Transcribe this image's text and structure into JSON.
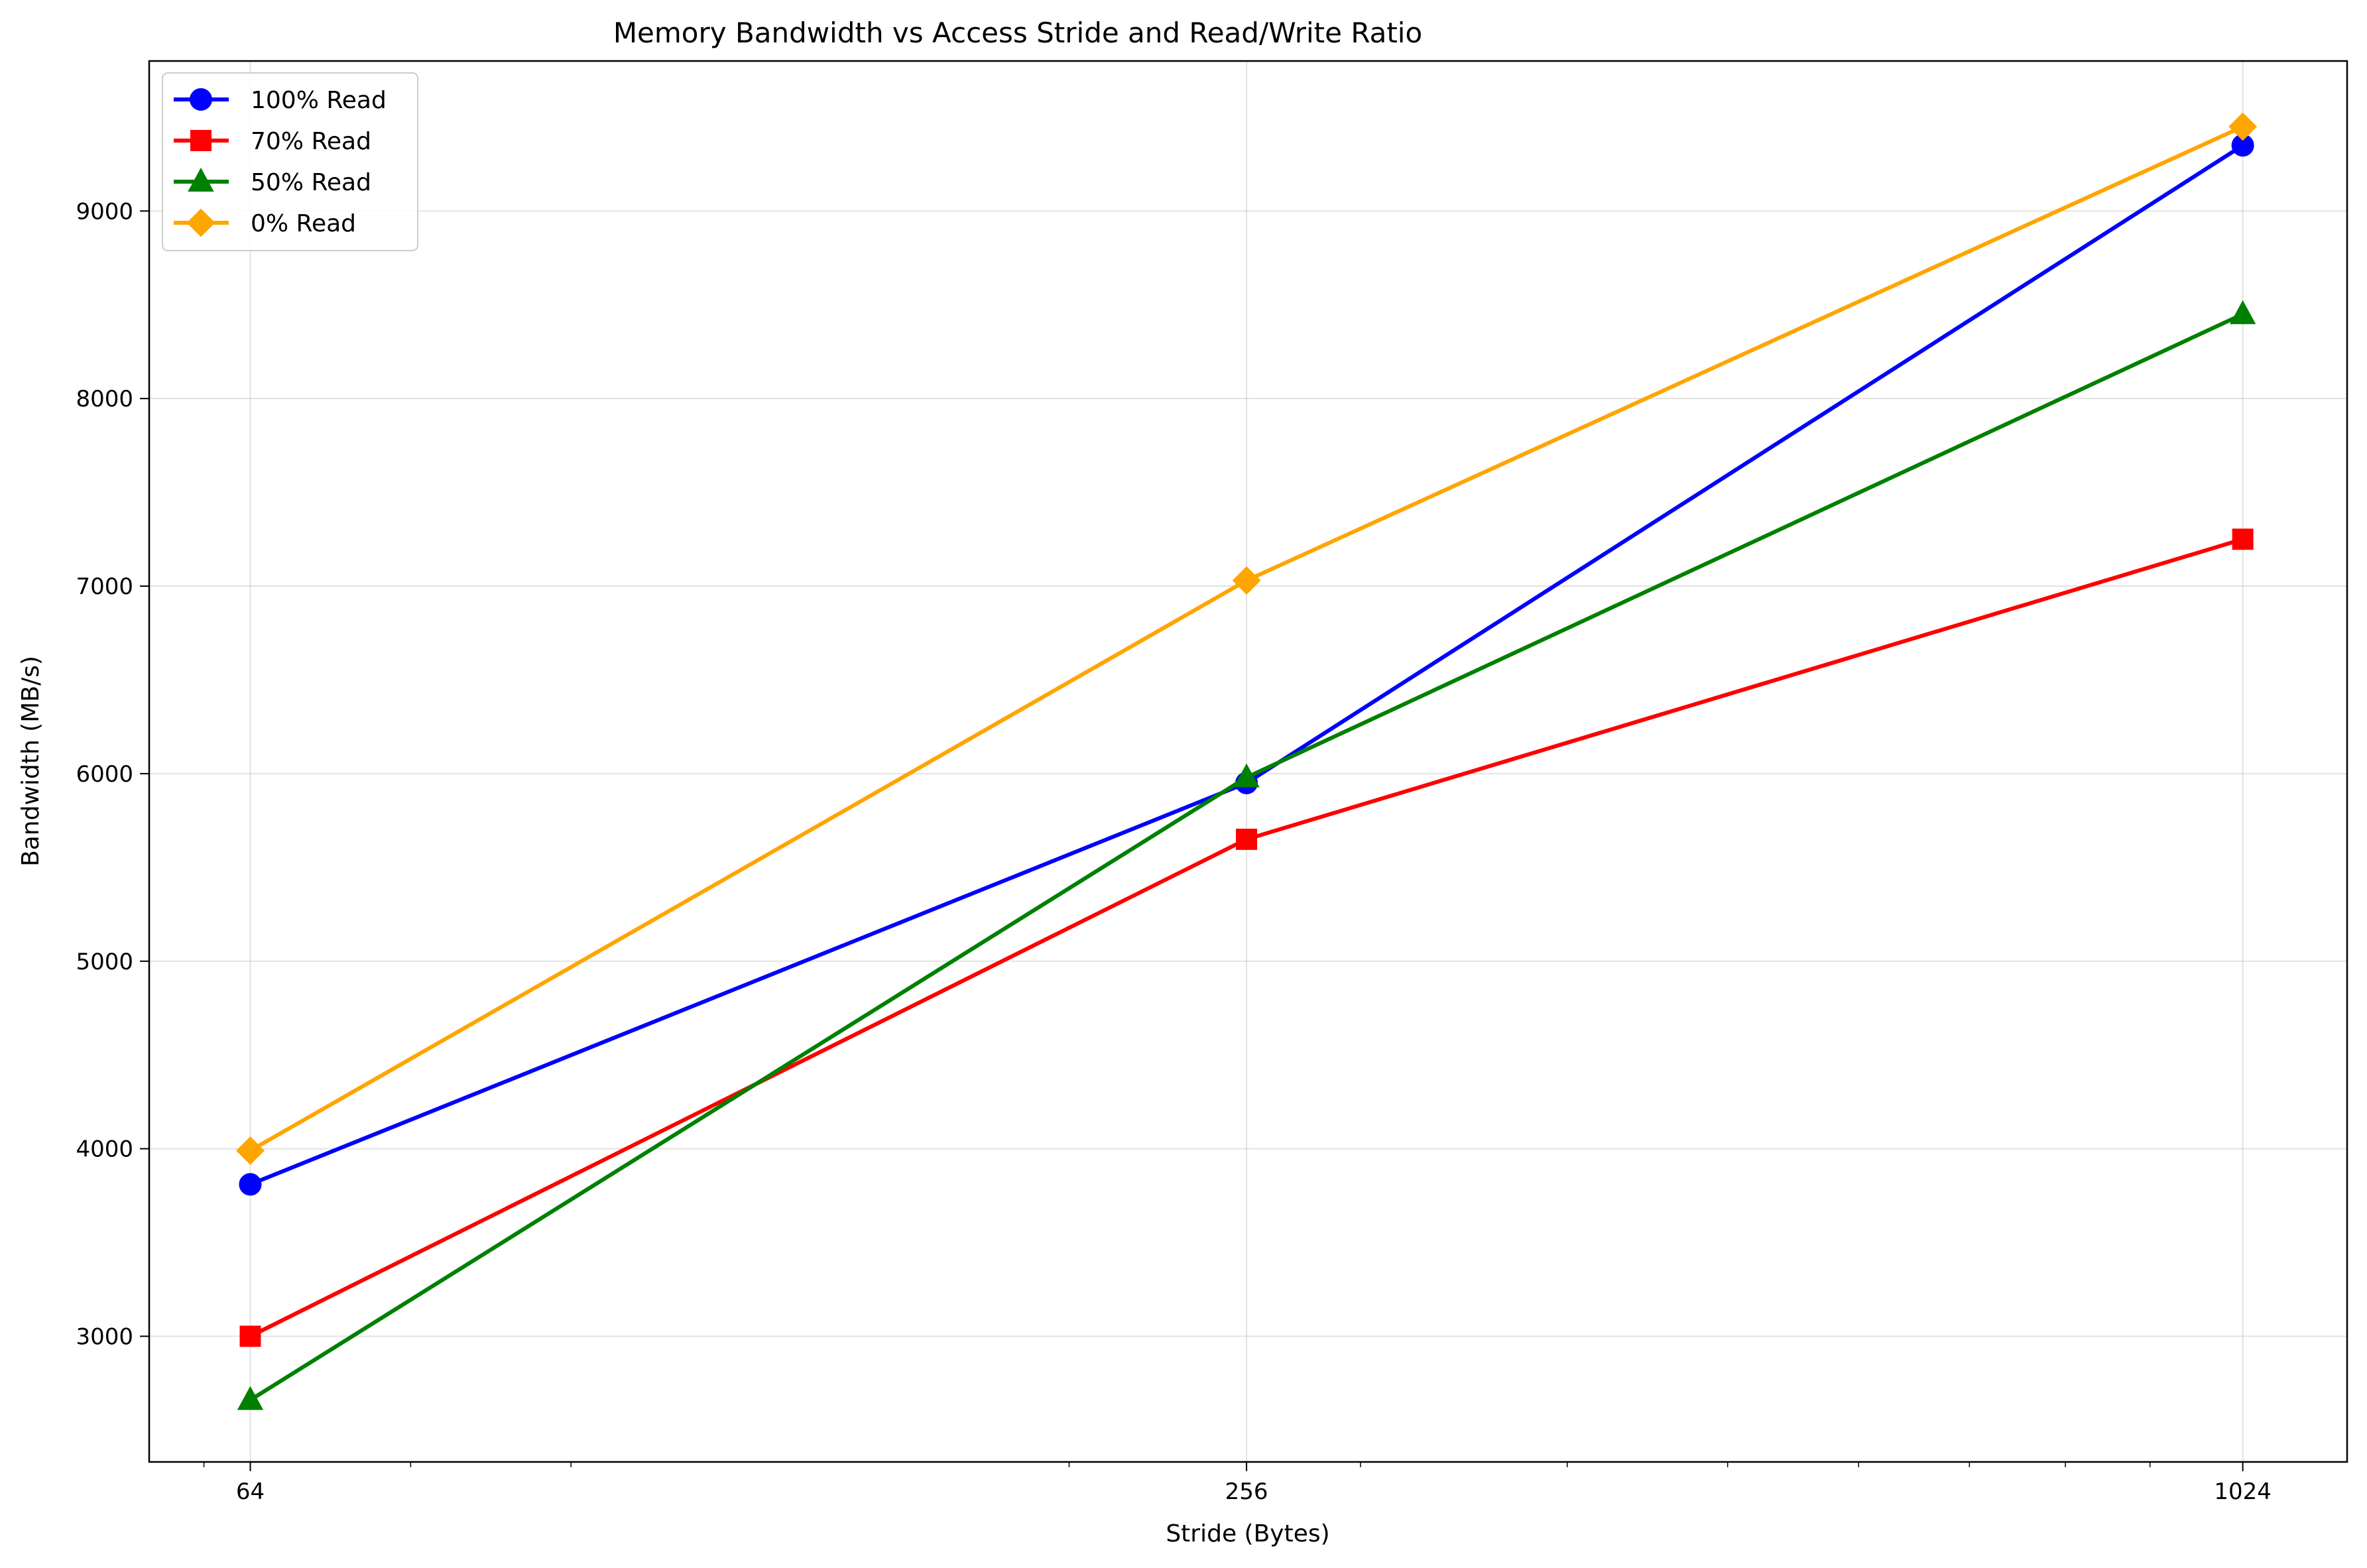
{
  "chart_data": {
    "type": "line",
    "title": "Memory Bandwidth vs Access Stride and Read/Write Ratio",
    "xlabel": "Stride (Bytes)",
    "ylabel": "Bandwidth (MB/s)",
    "x_scale": "log2",
    "x": [
      64,
      256,
      1024
    ],
    "x_tick_labels": [
      "64",
      "256",
      "1024"
    ],
    "xlim": [
      55.6,
      1184
    ],
    "ylim": [
      2330,
      9800
    ],
    "y_ticks": [
      3000,
      4000,
      5000,
      6000,
      7000,
      8000,
      9000
    ],
    "y_tick_labels": [
      "3000",
      "4000",
      "5000",
      "6000",
      "7000",
      "8000",
      "9000"
    ],
    "grid": true,
    "legend_position": "top-left",
    "series": [
      {
        "name": "100% Read",
        "values": [
          3810,
          5950,
          9350
        ],
        "color": "#0000ff",
        "marker": "circle"
      },
      {
        "name": "70% Read",
        "values": [
          3000,
          5650,
          7250
        ],
        "color": "#ff0000",
        "marker": "square"
      },
      {
        "name": "50% Read",
        "values": [
          2660,
          5980,
          8450
        ],
        "color": "#008000",
        "marker": "triangle"
      },
      {
        "name": "0% Read",
        "values": [
          3990,
          7030,
          9450
        ],
        "color": "#ffa500",
        "marker": "diamond"
      }
    ]
  }
}
